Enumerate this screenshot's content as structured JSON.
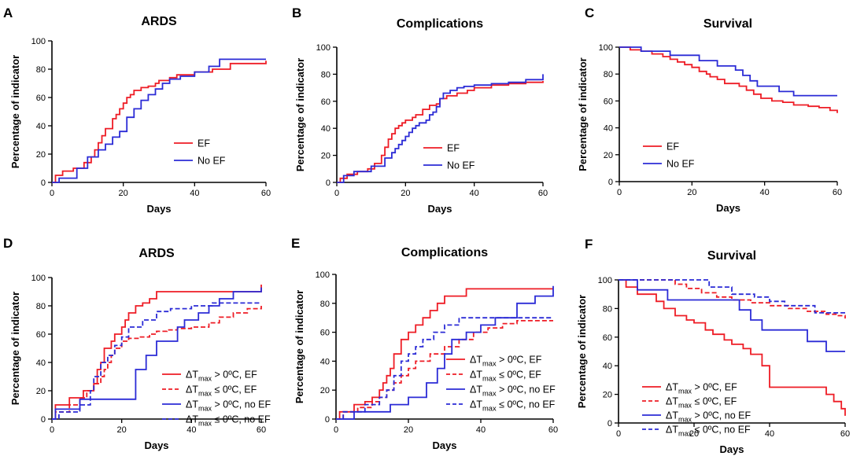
{
  "figure": {
    "background": "#ffffff",
    "colors": {
      "red": "#ee1c25",
      "blue": "#2b2bd6",
      "axis": "#000000"
    }
  },
  "chart_data": [
    {
      "id": "A",
      "letter": "A",
      "type": "line",
      "step": true,
      "title": "ARDS",
      "xlabel": "Days",
      "ylabel": "Percentage of indicator",
      "xlim": [
        0,
        60
      ],
      "ylim": [
        0,
        100
      ],
      "xticks": [
        0,
        20,
        40,
        60
      ],
      "yticks": [
        0,
        20,
        40,
        60,
        80,
        100
      ],
      "legend_position": "center-right",
      "series": [
        {
          "name": "EF",
          "color": "red",
          "dash": "solid",
          "x": [
            0,
            1,
            3,
            6,
            9,
            11,
            12,
            13,
            14,
            15,
            17,
            18,
            19,
            20,
            21,
            22,
            23,
            25,
            27,
            29,
            30,
            33,
            35,
            40,
            45,
            50,
            60
          ],
          "y": [
            0,
            5,
            8,
            10,
            14,
            18,
            23,
            28,
            33,
            38,
            45,
            48,
            52,
            56,
            60,
            62,
            65,
            67,
            68,
            70,
            72,
            74,
            76,
            78,
            80,
            84,
            86
          ]
        },
        {
          "name": "No EF",
          "color": "blue",
          "dash": "solid",
          "x": [
            0,
            2,
            7,
            10,
            13,
            15,
            17,
            19,
            21,
            23,
            25,
            27,
            29,
            31,
            33,
            36,
            40,
            44,
            47,
            60
          ],
          "y": [
            0,
            3,
            10,
            18,
            23,
            27,
            32,
            36,
            46,
            52,
            58,
            62,
            66,
            70,
            73,
            75,
            78,
            82,
            87,
            87
          ]
        }
      ]
    },
    {
      "id": "B",
      "letter": "B",
      "type": "line",
      "step": true,
      "title": "Complications",
      "xlabel": "Days",
      "ylabel": "Percentage of indicator",
      "xlim": [
        0,
        60
      ],
      "ylim": [
        0,
        100
      ],
      "xticks": [
        0,
        20,
        40,
        60
      ],
      "yticks": [
        0,
        20,
        40,
        60,
        80,
        100
      ],
      "legend_position": "center-right",
      "series": [
        {
          "name": "EF",
          "color": "red",
          "dash": "solid",
          "x": [
            0,
            1,
            3,
            6,
            9,
            11,
            13,
            14,
            15,
            16,
            17,
            18,
            19,
            20,
            22,
            23,
            25,
            27,
            29,
            30,
            32,
            35,
            38,
            40,
            45,
            50,
            55,
            60
          ],
          "y": [
            0,
            3,
            6,
            8,
            10,
            14,
            20,
            26,
            32,
            36,
            40,
            42,
            44,
            46,
            48,
            50,
            54,
            57,
            58,
            62,
            64,
            66,
            68,
            70,
            72,
            73,
            74,
            75
          ]
        },
        {
          "name": "No EF",
          "color": "blue",
          "dash": "solid",
          "x": [
            0,
            2,
            5,
            10,
            14,
            16,
            17,
            18,
            19,
            20,
            21,
            22,
            23,
            24,
            26,
            27,
            28,
            29,
            30,
            31,
            33,
            35,
            37,
            40,
            45,
            50,
            55,
            60
          ],
          "y": [
            0,
            5,
            8,
            12,
            18,
            22,
            25,
            28,
            31,
            34,
            37,
            40,
            42,
            44,
            46,
            50,
            52,
            56,
            62,
            66,
            68,
            70,
            71,
            72,
            73,
            74,
            76,
            80
          ]
        }
      ]
    },
    {
      "id": "C",
      "letter": "C",
      "type": "line",
      "step": true,
      "title": "Survival",
      "xlabel": "Days",
      "ylabel": "Percentage of indicator",
      "xlim": [
        0,
        60
      ],
      "ylim": [
        0,
        100
      ],
      "xticks": [
        0,
        20,
        40,
        60
      ],
      "yticks": [
        0,
        20,
        40,
        60,
        80,
        100
      ],
      "legend_position": "center-left",
      "series": [
        {
          "name": "EF",
          "color": "red",
          "dash": "solid",
          "x": [
            0,
            3,
            6,
            9,
            12,
            14,
            16,
            18,
            20,
            22,
            24,
            25,
            27,
            29,
            33,
            35,
            37,
            39,
            42,
            45,
            48,
            52,
            55,
            58,
            60
          ],
          "y": [
            100,
            98,
            97,
            95,
            93,
            91,
            89,
            87,
            85,
            82,
            80,
            78,
            76,
            73,
            71,
            68,
            65,
            62,
            60,
            59,
            57,
            56,
            55,
            53,
            51
          ]
        },
        {
          "name": "No EF",
          "color": "blue",
          "dash": "solid",
          "x": [
            0,
            6,
            14,
            22,
            27,
            32,
            34,
            36,
            38,
            44,
            48,
            60
          ],
          "y": [
            100,
            97,
            94,
            90,
            86,
            83,
            79,
            75,
            71,
            67,
            64,
            64
          ]
        }
      ]
    },
    {
      "id": "D",
      "letter": "D",
      "type": "line",
      "step": true,
      "title": "ARDS",
      "xlabel": "Days",
      "ylabel": "Percentage of indicator",
      "xlim": [
        0,
        60
      ],
      "ylim": [
        0,
        100
      ],
      "xticks": [
        0,
        20,
        40,
        60
      ],
      "yticks": [
        0,
        20,
        40,
        60,
        80,
        100
      ],
      "legend_position": "bottom-right",
      "series": [
        {
          "name": "ΔTmax > 0ºC, EF",
          "label_main": "ΔT",
          "label_sub": "max",
          "label_rest": " > 0ºC, EF",
          "color": "red",
          "dash": "solid",
          "x": [
            0,
            1,
            5,
            9,
            12,
            13,
            14,
            15,
            17,
            18,
            20,
            21,
            22,
            24,
            26,
            28,
            30,
            33,
            36,
            40,
            60
          ],
          "y": [
            0,
            10,
            15,
            20,
            25,
            35,
            40,
            50,
            55,
            60,
            65,
            70,
            75,
            80,
            82,
            85,
            90,
            90,
            90,
            90,
            95
          ]
        },
        {
          "name": "ΔTmax ≤ 0ºC, EF",
          "label_main": "ΔT",
          "label_sub": "max",
          "label_rest": " ≤ 0ºC, EF",
          "color": "red",
          "dash": "dashed",
          "x": [
            0,
            1,
            5,
            8,
            10,
            12,
            14,
            15,
            16,
            17,
            18,
            20,
            22,
            25,
            28,
            30,
            33,
            36,
            40,
            45,
            48,
            52,
            56,
            60
          ],
          "y": [
            0,
            5,
            10,
            15,
            20,
            25,
            30,
            35,
            40,
            45,
            50,
            55,
            57,
            58,
            60,
            62,
            63,
            64,
            65,
            68,
            72,
            75,
            78,
            80
          ]
        },
        {
          "name": "ΔTmax > 0ºC, no EF",
          "label_main": "ΔT",
          "label_sub": "max",
          "label_rest": " > 0ºC, no EF",
          "color": "blue",
          "dash": "solid",
          "x": [
            0,
            1,
            8,
            20,
            24,
            27,
            30,
            36,
            38,
            42,
            45,
            48,
            52,
            60
          ],
          "y": [
            0,
            7,
            14,
            14,
            35,
            45,
            55,
            65,
            70,
            75,
            80,
            85,
            90,
            93
          ]
        },
        {
          "name": "ΔTmax ≤ 0ºC, no EF",
          "label_main": "ΔT",
          "label_sub": "max",
          "label_rest": " ≤ 0ºC, no EF",
          "color": "blue",
          "dash": "dashed",
          "x": [
            0,
            2,
            8,
            11,
            12,
            14,
            16,
            18,
            20,
            22,
            26,
            30,
            34,
            40,
            46,
            52,
            60
          ],
          "y": [
            0,
            5,
            10,
            20,
            30,
            40,
            45,
            52,
            58,
            65,
            70,
            76,
            78,
            80,
            82,
            82,
            82
          ]
        }
      ]
    },
    {
      "id": "E",
      "letter": "E",
      "type": "line",
      "step": true,
      "title": "Complications",
      "xlabel": "Days",
      "ylabel": "Percentage of indicator",
      "xlim": [
        0,
        60
      ],
      "ylim": [
        0,
        100
      ],
      "xticks": [
        0,
        20,
        40,
        60
      ],
      "yticks": [
        0,
        20,
        40,
        60,
        80,
        100
      ],
      "legend_position": "bottom-right",
      "series": [
        {
          "name": "ΔTmax > 0ºC, EF",
          "label_main": "ΔT",
          "label_sub": "max",
          "label_rest": " > 0ºC, EF",
          "color": "red",
          "dash": "solid",
          "x": [
            0,
            1,
            5,
            8,
            10,
            12,
            13,
            14,
            15,
            16,
            18,
            20,
            22,
            24,
            26,
            28,
            30,
            32,
            36,
            60
          ],
          "y": [
            0,
            5,
            10,
            12,
            15,
            20,
            25,
            30,
            35,
            45,
            55,
            60,
            65,
            70,
            75,
            80,
            85,
            85,
            90,
            90
          ]
        },
        {
          "name": "ΔTmax ≤ 0ºC, EF",
          "label_main": "ΔT",
          "label_sub": "max",
          "label_rest": " ≤ 0ºC, EF",
          "color": "red",
          "dash": "dashed",
          "x": [
            0,
            2,
            6,
            10,
            12,
            14,
            16,
            18,
            20,
            22,
            26,
            30,
            34,
            38,
            42,
            46,
            50,
            60
          ],
          "y": [
            0,
            5,
            8,
            12,
            15,
            20,
            25,
            30,
            35,
            40,
            45,
            50,
            55,
            60,
            63,
            66,
            68,
            68
          ]
        },
        {
          "name": "ΔTmax > 0ºC, no EF",
          "label_main": "ΔT",
          "label_sub": "max",
          "label_rest": " > 0ºC, no EF",
          "color": "blue",
          "dash": "solid",
          "x": [
            0,
            5,
            15,
            20,
            25,
            28,
            30,
            32,
            36,
            40,
            44,
            50,
            55,
            60
          ],
          "y": [
            0,
            5,
            10,
            15,
            25,
            35,
            45,
            55,
            60,
            65,
            70,
            80,
            85,
            92
          ]
        },
        {
          "name": "ΔTmax ≤ 0ºC, no EF",
          "label_main": "ΔT",
          "label_sub": "max",
          "label_rest": " ≤ 0ºC, no EF",
          "color": "blue",
          "dash": "dashed",
          "x": [
            0,
            2,
            8,
            12,
            14,
            16,
            18,
            20,
            22,
            24,
            27,
            30,
            34,
            40,
            60
          ],
          "y": [
            0,
            5,
            10,
            15,
            20,
            30,
            40,
            45,
            50,
            55,
            60,
            65,
            70,
            70,
            70
          ]
        }
      ]
    },
    {
      "id": "F",
      "letter": "F",
      "type": "line",
      "step": true,
      "title": "Survival",
      "xlabel": "Days",
      "ylabel": "Percentage of indicator",
      "xlim": [
        0,
        60
      ],
      "ylim": [
        0,
        100
      ],
      "xticks": [
        0,
        20,
        40,
        60
      ],
      "yticks": [
        0,
        20,
        40,
        60,
        80,
        100
      ],
      "legend_position": "bottom-left",
      "series": [
        {
          "name": "ΔTmax > 0ºC, EF",
          "label_main": "ΔT",
          "label_sub": "max",
          "label_rest": " > 0ºC, EF",
          "color": "red",
          "dash": "solid",
          "x": [
            0,
            2,
            5,
            10,
            12,
            15,
            18,
            20,
            23,
            25,
            28,
            30,
            33,
            35,
            38,
            40,
            50,
            55,
            57,
            59,
            60
          ],
          "y": [
            100,
            95,
            90,
            85,
            80,
            75,
            72,
            70,
            65,
            62,
            58,
            55,
            52,
            48,
            40,
            25,
            25,
            20,
            15,
            10,
            5
          ]
        },
        {
          "name": "ΔTmax ≤ 0ºC, EF",
          "label_main": "ΔT",
          "label_sub": "max",
          "label_rest": " ≤ 0ºC, EF",
          "color": "red",
          "dash": "dashed",
          "x": [
            0,
            15,
            18,
            22,
            26,
            30,
            35,
            40,
            45,
            50,
            55,
            58,
            60
          ],
          "y": [
            100,
            97,
            94,
            91,
            88,
            86,
            84,
            82,
            80,
            78,
            76,
            75,
            73
          ]
        },
        {
          "name": "ΔTmax > 0ºC, no EF",
          "label_main": "ΔT",
          "label_sub": "max",
          "label_rest": " > 0ºC, no EF",
          "color": "blue",
          "dash": "solid",
          "x": [
            0,
            5,
            13,
            25,
            32,
            35,
            38,
            42,
            50,
            55,
            60
          ],
          "y": [
            100,
            93,
            86,
            86,
            79,
            72,
            65,
            65,
            57,
            50,
            50
          ]
        },
        {
          "name": "ΔTmax ≤ 0ºC, no EF",
          "label_main": "ΔT",
          "label_sub": "max",
          "label_rest": " ≤ 0ºC, no EF",
          "color": "blue",
          "dash": "dashed",
          "x": [
            0,
            22,
            24,
            30,
            36,
            40,
            44,
            48,
            52,
            60
          ],
          "y": [
            100,
            100,
            95,
            90,
            88,
            85,
            82,
            82,
            77,
            77
          ]
        }
      ]
    }
  ]
}
